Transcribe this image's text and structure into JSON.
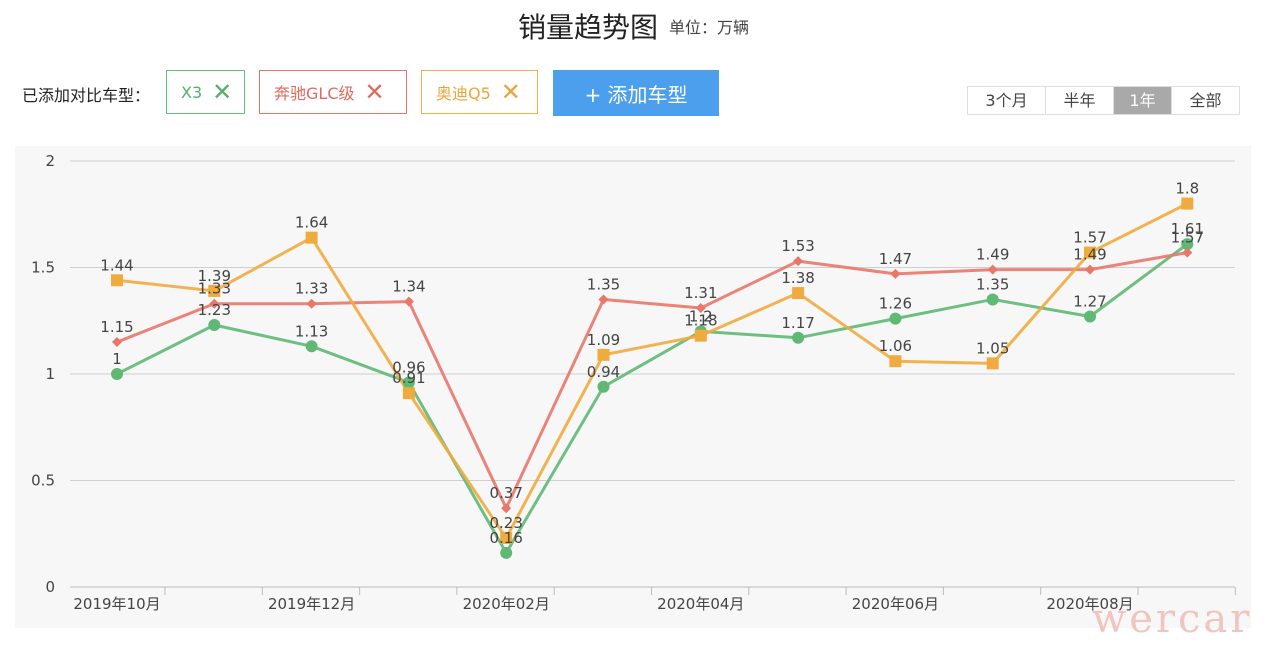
{
  "header": {
    "title": "销量趋势图",
    "unit": "单位：万辆"
  },
  "compare": {
    "label": "已添加对比车型：",
    "tags": [
      {
        "name": "X3",
        "color": "#5fb874"
      },
      {
        "name": "奔驰GLC级",
        "color": "#e8776a"
      },
      {
        "name": "奥迪Q5",
        "color": "#f0ab3f"
      }
    ],
    "remove_icon": "close-icon",
    "add_button": "+ 添加车型"
  },
  "range": {
    "options": [
      "3个月",
      "半年",
      "1年",
      "全部"
    ],
    "active": "1年"
  },
  "watermark": "wercar",
  "chart_data": {
    "type": "line",
    "x": [
      "2019年10月",
      "2019年11月",
      "2019年12月",
      "2020年01月",
      "2020年02月",
      "2020年03月",
      "2020年04月",
      "2020年05月",
      "2020年06月",
      "2020年07月",
      "2020年08月",
      "2020年09月"
    ],
    "tick_labels": [
      "2019年10月",
      "2019年12月",
      "2020年02月",
      "2020年04月",
      "2020年06月",
      "2020年08月"
    ],
    "series": [
      {
        "name": "X3",
        "color": "#5fb874",
        "marker": "circle",
        "values": [
          1,
          1.23,
          1.13,
          0.96,
          0.16,
          0.94,
          1.2,
          1.17,
          1.26,
          1.35,
          1.27,
          1.61
        ]
      },
      {
        "name": "奔驰GLC级",
        "color": "#e8776a",
        "marker": "diamond",
        "values": [
          1.15,
          1.33,
          1.33,
          1.34,
          0.37,
          1.35,
          1.31,
          1.53,
          1.47,
          1.49,
          1.49,
          1.57
        ]
      },
      {
        "name": "奥迪Q5",
        "color": "#f0ab3f",
        "marker": "square",
        "values": [
          1.44,
          1.39,
          1.64,
          0.91,
          0.23,
          1.09,
          1.18,
          1.38,
          1.06,
          1.05,
          1.57,
          1.8
        ]
      }
    ],
    "ylim": [
      0,
      2
    ],
    "yticks": [
      0,
      0.5,
      1,
      1.5,
      2
    ],
    "grid": true
  }
}
